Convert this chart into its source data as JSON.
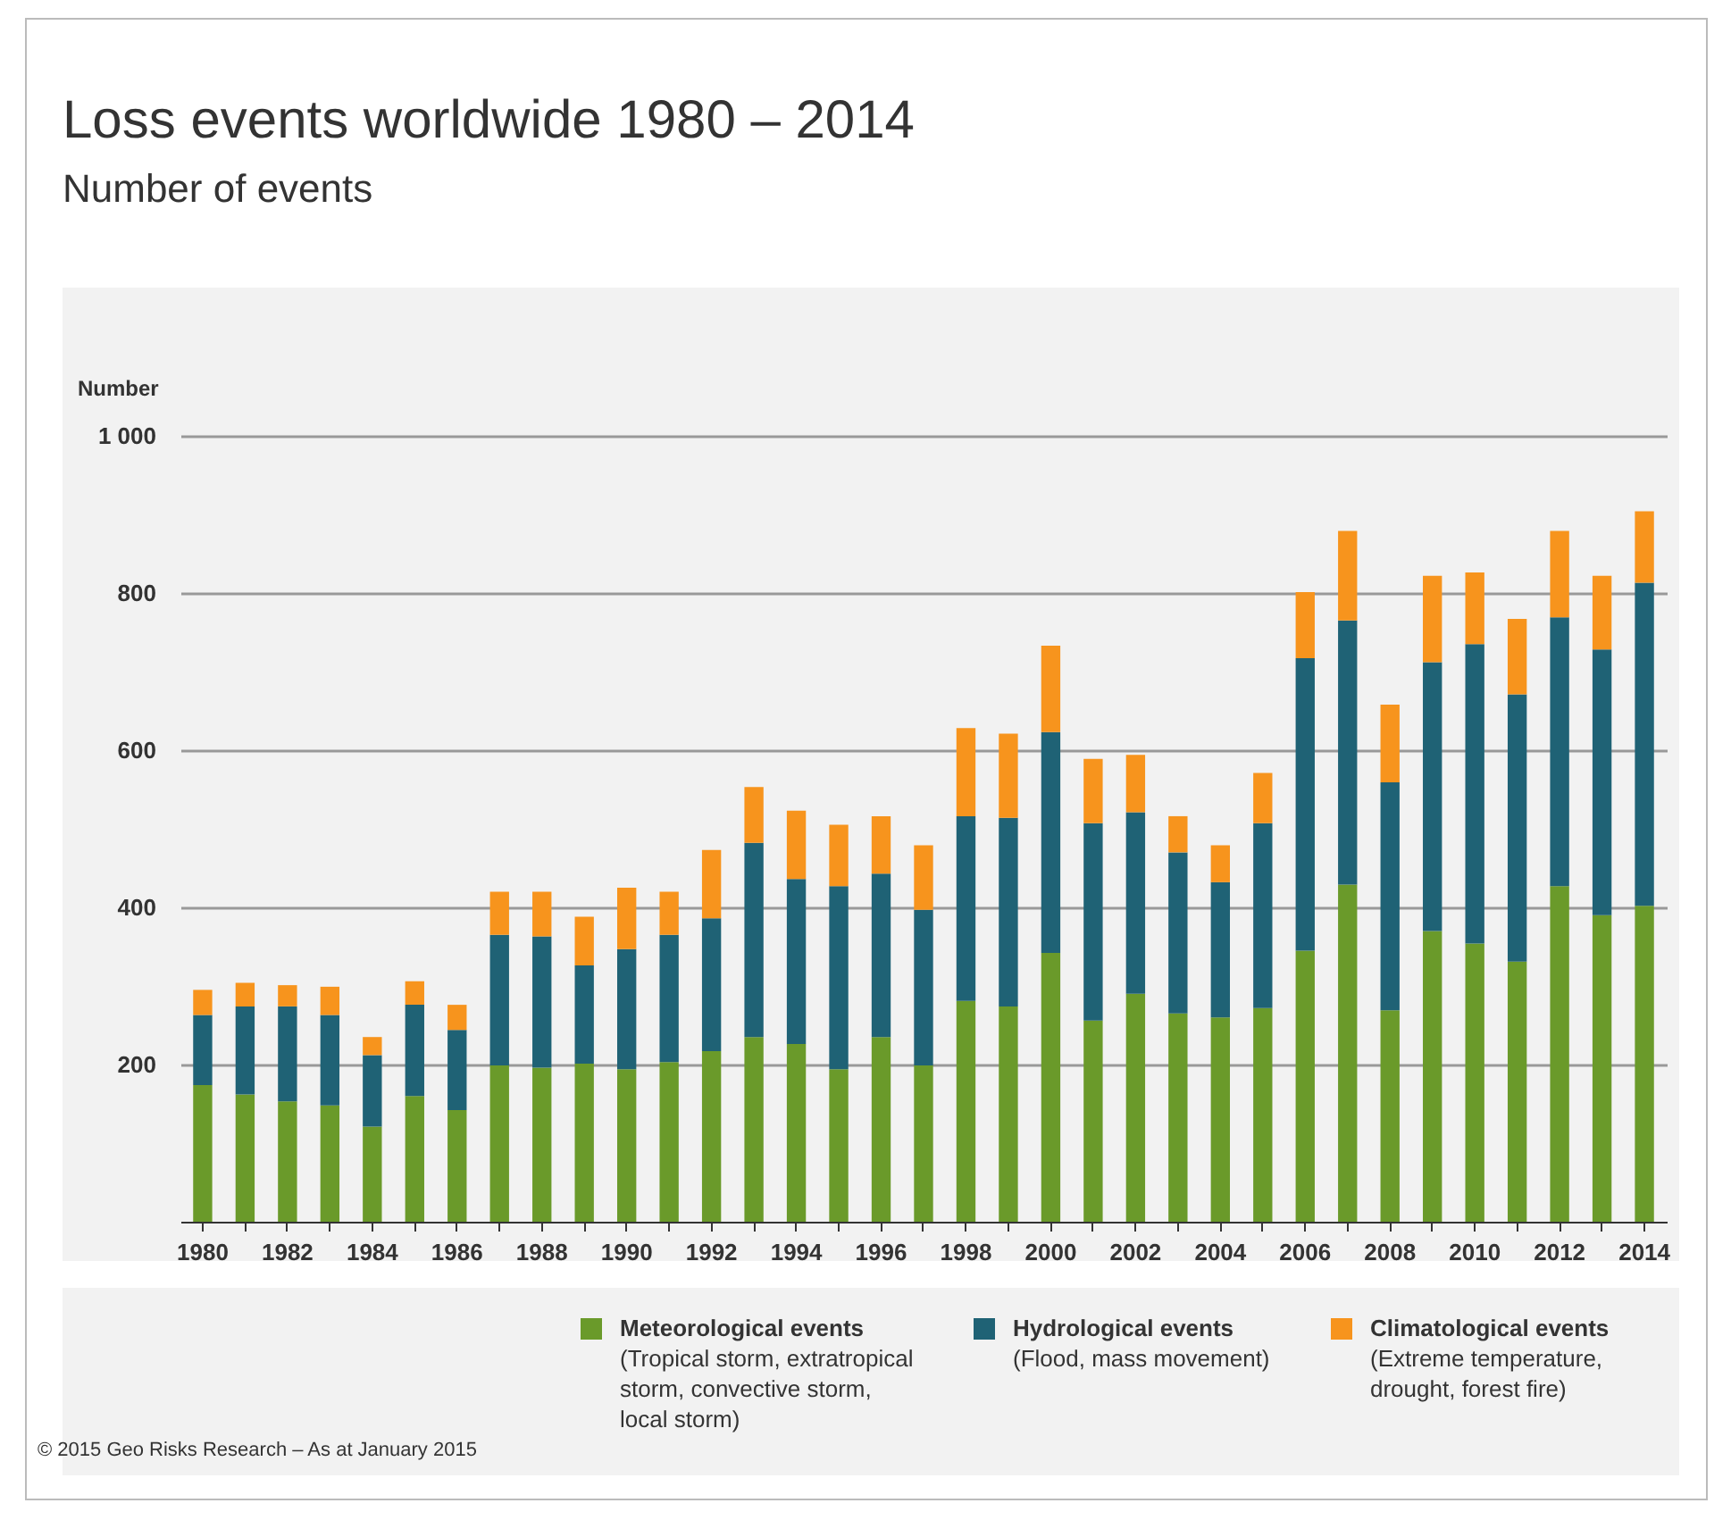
{
  "chart_data": {
    "type": "bar",
    "title": "Loss events worldwide 1980 – 2014",
    "subtitle": "Number of events",
    "ylabel": "Number",
    "categories": [
      "1980",
      null,
      "1982",
      null,
      "1984",
      null,
      "1986",
      null,
      "1988",
      null,
      "1990",
      null,
      "1992",
      null,
      "1994",
      null,
      "1996",
      null,
      "1998",
      null,
      "2000",
      null,
      "2002",
      null,
      "2004",
      null,
      "2006",
      null,
      "2008",
      null,
      "2010",
      null,
      "2012",
      null,
      "2014"
    ],
    "stacked": true,
    "series": [
      {
        "name": "Meteorological events",
        "color": "#6a9a2a",
        "values": [
          174,
          162,
          153,
          148,
          121,
          160,
          142,
          199,
          196,
          201,
          194,
          203,
          217,
          235,
          226,
          194,
          235,
          199,
          281,
          274,
          342,
          256,
          290,
          265,
          260,
          272,
          345,
          429,
          269,
          370,
          354,
          331,
          427,
          390,
          402
        ]
      },
      {
        "name": "Hydrological events",
        "color": "#1f6275",
        "values": [
          89,
          112,
          121,
          115,
          91,
          116,
          102,
          166,
          167,
          125,
          153,
          162,
          169,
          247,
          210,
          233,
          208,
          198,
          235,
          240,
          281,
          251,
          231,
          205,
          172,
          235,
          372,
          336,
          290,
          342,
          381,
          340,
          342,
          338,
          411
        ]
      },
      {
        "name": "Climatological events",
        "color": "#f7941d",
        "values": [
          32,
          30,
          27,
          36,
          23,
          30,
          32,
          55,
          57,
          62,
          78,
          55,
          87,
          71,
          87,
          78,
          73,
          82,
          112,
          107,
          110,
          82,
          73,
          46,
          47,
          64,
          84,
          114,
          99,
          110,
          91,
          96,
          110,
          94,
          91
        ]
      }
    ],
    "ylim": [
      0,
      1000
    ],
    "yticks": [
      200,
      400,
      600,
      800,
      {
        "value": 1000,
        "label": "1 000"
      }
    ],
    "grid": "y",
    "legend": "bottom",
    "annotations": [
      "(Tropical storm, extratropical storm, convective storm, local storm)",
      "(Flood, mass movement)",
      "(Extreme temperature, drought, forest fire)",
      "© 2015 Geo Risks Research – As at January 2015"
    ]
  }
}
